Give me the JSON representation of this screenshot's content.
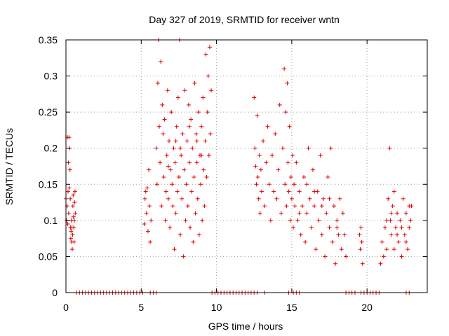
{
  "chart_data": {
    "type": "scatter",
    "title": "Day 327 of 2019, SRMTID for receiver wntn",
    "xlabel": "GPS time / hours",
    "ylabel": "SRMTID / TECUs",
    "xlim": [
      0,
      24
    ],
    "ylim": [
      0,
      0.35
    ],
    "x_ticks": [
      0,
      5,
      10,
      15,
      20
    ],
    "x_tick_labels": [
      "0",
      "5",
      "10",
      "15",
      "20"
    ],
    "y_ticks": [
      0,
      0.05,
      0.1,
      0.15,
      0.2,
      0.25,
      0.3,
      0.35
    ],
    "y_tick_labels": [
      "0",
      "0.05",
      "0.1",
      "0.15",
      "0.2",
      "0.25",
      "0.3",
      "0.35"
    ],
    "grid": true,
    "marker": "+",
    "color": "#e00000",
    "series": [
      {
        "name": "SRMTID",
        "points": [
          [
            0.0,
            0.13
          ],
          [
            0.05,
            0.1
          ],
          [
            0.08,
            0.12
          ],
          [
            0.1,
            0.215
          ],
          [
            0.12,
            0.095
          ],
          [
            0.14,
            0.14
          ],
          [
            0.16,
            0.18
          ],
          [
            0.18,
            0.11
          ],
          [
            0.2,
            0.215
          ],
          [
            0.22,
            0.145
          ],
          [
            0.25,
            0.2
          ],
          [
            0.27,
            0.17
          ],
          [
            0.29,
            0.13
          ],
          [
            0.3,
            0.09
          ],
          [
            0.32,
            0.075
          ],
          [
            0.34,
            0.085
          ],
          [
            0.36,
            0.1
          ],
          [
            0.38,
            0.07
          ],
          [
            0.4,
            0.09
          ],
          [
            0.42,
            0.06
          ],
          [
            0.44,
            0.08
          ],
          [
            0.46,
            0.12
          ],
          [
            0.48,
            0.135
          ],
          [
            0.5,
            0.105
          ],
          [
            0.52,
            0.09
          ],
          [
            0.54,
            0.07
          ],
          [
            0.56,
            0.1
          ],
          [
            0.58,
            0.125
          ],
          [
            0.6,
            0.14
          ],
          [
            0.62,
            0.11
          ],
          [
            5.2,
            0.095
          ],
          [
            5.25,
            0.13
          ],
          [
            5.3,
            0.14
          ],
          [
            5.35,
            0.11
          ],
          [
            5.4,
            0.145
          ],
          [
            5.45,
            0.085
          ],
          [
            5.5,
            0.17
          ],
          [
            5.55,
            0.12
          ],
          [
            5.6,
            0.07
          ],
          [
            5.65,
            0.1
          ],
          [
            6.0,
            0.2
          ],
          [
            6.05,
            0.15
          ],
          [
            6.1,
            0.29
          ],
          [
            6.15,
            0.35
          ],
          [
            6.2,
            0.23
          ],
          [
            6.25,
            0.18
          ],
          [
            6.3,
            0.32
          ],
          [
            6.35,
            0.12
          ],
          [
            6.4,
            0.26
          ],
          [
            6.45,
            0.22
          ],
          [
            6.5,
            0.16
          ],
          [
            6.55,
            0.24
          ],
          [
            6.6,
            0.1
          ],
          [
            6.65,
            0.14
          ],
          [
            6.7,
            0.19
          ],
          [
            6.75,
            0.28
          ],
          [
            6.8,
            0.13
          ],
          [
            6.85,
            0.21
          ],
          [
            6.9,
            0.09
          ],
          [
            6.95,
            0.17
          ],
          [
            7.0,
            0.25
          ],
          [
            7.05,
            0.15
          ],
          [
            7.1,
            0.12
          ],
          [
            7.15,
            0.2
          ],
          [
            7.2,
            0.06
          ],
          [
            7.25,
            0.18
          ],
          [
            7.3,
            0.11
          ],
          [
            7.35,
            0.23
          ],
          [
            7.4,
            0.14
          ],
          [
            7.45,
            0.27
          ],
          [
            7.5,
            0.16
          ],
          [
            7.55,
            0.35
          ],
          [
            7.6,
            0.08
          ],
          [
            7.65,
            0.19
          ],
          [
            7.7,
            0.13
          ],
          [
            7.75,
            0.22
          ],
          [
            7.8,
            0.05
          ],
          [
            7.85,
            0.17
          ],
          [
            7.9,
            0.28
          ],
          [
            7.95,
            0.1
          ],
          [
            8.0,
            0.15
          ],
          [
            8.05,
            0.21
          ],
          [
            8.1,
            0.12
          ],
          [
            8.15,
            0.26
          ],
          [
            8.2,
            0.18
          ],
          [
            8.25,
            0.09
          ],
          [
            8.3,
            0.24
          ],
          [
            8.35,
            0.14
          ],
          [
            8.4,
            0.2
          ],
          [
            8.45,
            0.07
          ],
          [
            8.5,
            0.16
          ],
          [
            8.55,
            0.29
          ],
          [
            8.6,
            0.11
          ],
          [
            8.65,
            0.22
          ],
          [
            8.7,
            0.18
          ],
          [
            8.75,
            0.13
          ],
          [
            8.8,
            0.25
          ],
          [
            8.85,
            0.08
          ],
          [
            8.9,
            0.19
          ],
          [
            8.95,
            0.15
          ],
          [
            9.0,
            0.23
          ],
          [
            9.05,
            0.1
          ],
          [
            9.1,
            0.27
          ],
          [
            9.15,
            0.17
          ],
          [
            9.2,
            0.12
          ],
          [
            9.25,
            0.21
          ],
          [
            9.3,
            0.33
          ],
          [
            9.35,
            0.16
          ],
          [
            9.4,
            0.25
          ],
          [
            9.45,
            0.3
          ],
          [
            9.5,
            0.19
          ],
          [
            9.55,
            0.34
          ],
          [
            9.6,
            0.22
          ],
          [
            9.65,
            0.28
          ],
          [
            7.3,
            0.21
          ],
          [
            7.6,
            0.2
          ],
          [
            8.2,
            0.23
          ],
          [
            8.7,
            0.21
          ],
          [
            9.0,
            0.19
          ],
          [
            6.8,
            0.175
          ],
          [
            12.5,
            0.27
          ],
          [
            12.55,
            0.2
          ],
          [
            12.6,
            0.175
          ],
          [
            12.65,
            0.15
          ],
          [
            12.7,
            0.245
          ],
          [
            12.75,
            0.16
          ],
          [
            12.8,
            0.13
          ],
          [
            12.85,
            0.19
          ],
          [
            12.9,
            0.11
          ],
          [
            12.95,
            0.17
          ],
          [
            13.0,
            0.14
          ],
          [
            13.1,
            0.21
          ],
          [
            13.2,
            0.12
          ],
          [
            13.3,
            0.18
          ],
          [
            13.4,
            0.23
          ],
          [
            13.5,
            0.15
          ],
          [
            13.6,
            0.1
          ],
          [
            13.7,
            0.19
          ],
          [
            13.8,
            0.14
          ],
          [
            13.9,
            0.22
          ],
          [
            14.0,
            0.13
          ],
          [
            14.1,
            0.17
          ],
          [
            14.2,
            0.26
          ],
          [
            14.3,
            0.11
          ],
          [
            14.4,
            0.2
          ],
          [
            14.5,
            0.31
          ],
          [
            14.55,
            0.15
          ],
          [
            14.6,
            0.25
          ],
          [
            14.65,
            0.12
          ],
          [
            14.7,
            0.29
          ],
          [
            14.75,
            0.18
          ],
          [
            14.8,
            0.14
          ],
          [
            14.85,
            0.23
          ],
          [
            14.9,
            0.1
          ],
          [
            14.95,
            0.16
          ],
          [
            15.0,
            0.13
          ],
          [
            15.05,
            0.19
          ],
          [
            15.1,
            0.09
          ],
          [
            15.15,
            0.15
          ],
          [
            15.2,
            0.12
          ],
          [
            15.3,
            0.18
          ],
          [
            15.4,
            0.1
          ],
          [
            15.5,
            0.14
          ],
          [
            15.6,
            0.08
          ],
          [
            15.7,
            0.12
          ],
          [
            15.8,
            0.16
          ],
          [
            15.9,
            0.07
          ],
          [
            16.0,
            0.11
          ],
          [
            16.1,
            0.2
          ],
          [
            16.2,
            0.13
          ],
          [
            16.3,
            0.09
          ],
          [
            16.4,
            0.17
          ],
          [
            16.5,
            0.12
          ],
          [
            16.6,
            0.06
          ],
          [
            16.7,
            0.14
          ],
          [
            16.8,
            0.1
          ],
          [
            16.9,
            0.19
          ],
          [
            17.0,
            0.08
          ],
          [
            17.1,
            0.13
          ],
          [
            17.2,
            0.05
          ],
          [
            17.3,
            0.11
          ],
          [
            17.4,
            0.16
          ],
          [
            17.5,
            0.09
          ],
          [
            17.6,
            0.2
          ],
          [
            17.7,
            0.07
          ],
          [
            17.8,
            0.12
          ],
          [
            17.9,
            0.04
          ],
          [
            18.0,
            0.1
          ],
          [
            18.1,
            0.08
          ],
          [
            18.2,
            0.13
          ],
          [
            18.3,
            0.06
          ],
          [
            18.4,
            0.11
          ],
          [
            18.5,
            0.08
          ],
          [
            18.6,
            0.05
          ],
          [
            16.0,
            0.15
          ],
          [
            16.5,
            0.14
          ],
          [
            17.0,
            0.12
          ],
          [
            17.5,
            0.13
          ],
          [
            18.0,
            0.09
          ],
          [
            15.5,
            0.11
          ],
          [
            19.5,
            0.08
          ],
          [
            19.55,
            0.06
          ],
          [
            19.6,
            0.09
          ],
          [
            19.65,
            0.07
          ],
          [
            19.7,
            0.04
          ],
          [
            20.9,
            0.04
          ],
          [
            21.0,
            0.07
          ],
          [
            21.1,
            0.05
          ],
          [
            21.2,
            0.09
          ],
          [
            21.3,
            0.06
          ],
          [
            21.4,
            0.13
          ],
          [
            21.5,
            0.2
          ],
          [
            21.55,
            0.1
          ],
          [
            21.6,
            0.08
          ],
          [
            21.7,
            0.12
          ],
          [
            21.8,
            0.06
          ],
          [
            21.9,
            0.09
          ],
          [
            22.0,
            0.11
          ],
          [
            22.1,
            0.07
          ],
          [
            22.2,
            0.1
          ],
          [
            22.3,
            0.05
          ],
          [
            22.4,
            0.13
          ],
          [
            22.5,
            0.08
          ],
          [
            22.6,
            0.11
          ],
          [
            22.7,
            0.06
          ],
          [
            22.8,
            0.12
          ],
          [
            22.9,
            0.1
          ],
          [
            22.95,
            0.12
          ],
          [
            21.3,
            0.1
          ],
          [
            21.8,
            0.14
          ],
          [
            22.3,
            0.09
          ],
          [
            22.6,
            0.07
          ],
          [
            21.6,
            0.11
          ],
          [
            22.0,
            0.08
          ],
          [
            22.8,
            0.09
          ],
          [
            0.7,
            0
          ],
          [
            0.9,
            0
          ],
          [
            1.1,
            0
          ],
          [
            1.3,
            0
          ],
          [
            1.5,
            0
          ],
          [
            1.7,
            0
          ],
          [
            1.9,
            0
          ],
          [
            2.1,
            0
          ],
          [
            2.3,
            0
          ],
          [
            2.5,
            0
          ],
          [
            2.7,
            0
          ],
          [
            2.9,
            0
          ],
          [
            3.1,
            0
          ],
          [
            3.3,
            0
          ],
          [
            3.5,
            0
          ],
          [
            3.7,
            0
          ],
          [
            3.9,
            0
          ],
          [
            4.1,
            0
          ],
          [
            4.3,
            0
          ],
          [
            4.5,
            0
          ],
          [
            4.7,
            0
          ],
          [
            4.9,
            0
          ],
          [
            5.1,
            0
          ],
          [
            5.6,
            0
          ],
          [
            5.8,
            0
          ],
          [
            6.0,
            0
          ],
          [
            9.7,
            0
          ],
          [
            9.9,
            0
          ],
          [
            10.1,
            0
          ],
          [
            10.3,
            0
          ],
          [
            10.5,
            0
          ],
          [
            10.7,
            0
          ],
          [
            10.9,
            0
          ],
          [
            11.1,
            0
          ],
          [
            11.3,
            0
          ],
          [
            11.5,
            0
          ],
          [
            11.7,
            0
          ],
          [
            11.9,
            0
          ],
          [
            12.1,
            0
          ],
          [
            12.3,
            0
          ],
          [
            12.5,
            0
          ],
          [
            12.7,
            0
          ],
          [
            13.2,
            0
          ],
          [
            14.8,
            0
          ],
          [
            15.1,
            0
          ],
          [
            15.3,
            0
          ],
          [
            15.5,
            0
          ],
          [
            18.6,
            0
          ],
          [
            18.8,
            0
          ],
          [
            19.0,
            0
          ],
          [
            19.2,
            0
          ],
          [
            19.6,
            0
          ],
          [
            19.8,
            0
          ],
          [
            20.0,
            0
          ],
          [
            20.2,
            0
          ],
          [
            20.4,
            0
          ],
          [
            20.6,
            0
          ],
          [
            20.8,
            0
          ],
          [
            22.6,
            0
          ],
          [
            22.8,
            0
          ]
        ]
      }
    ]
  }
}
